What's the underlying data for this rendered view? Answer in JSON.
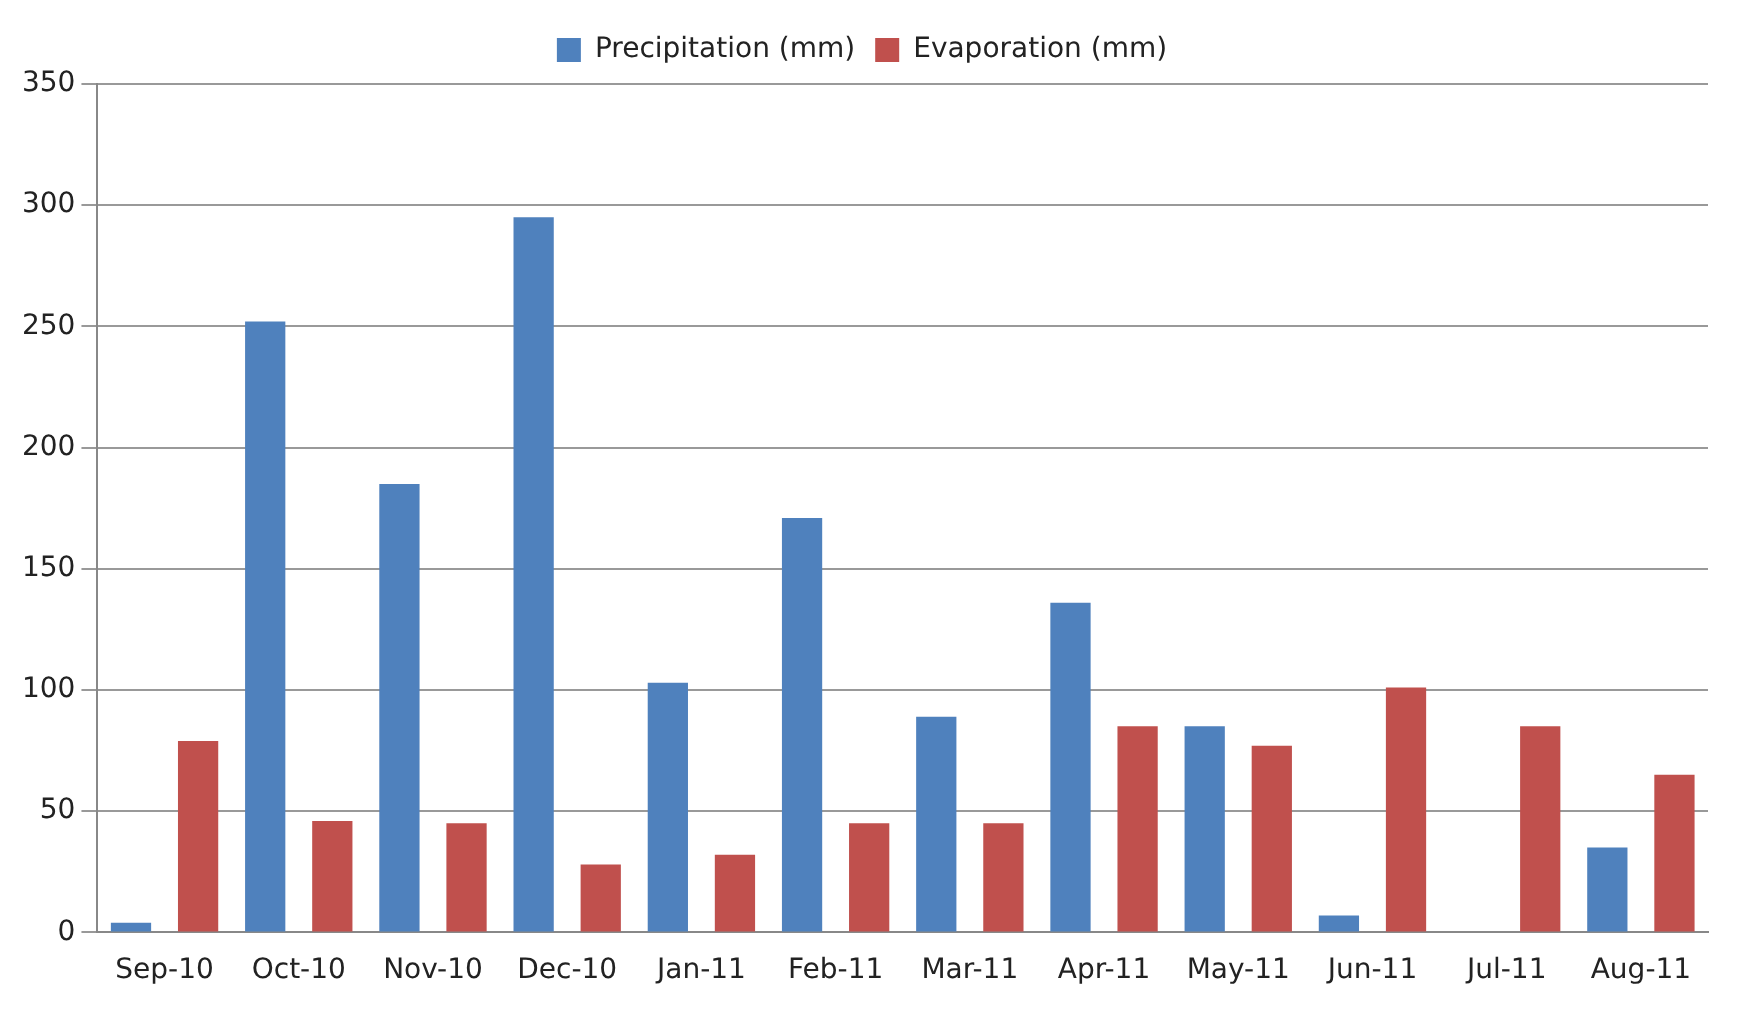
{
  "chart_data": {
    "type": "bar",
    "categories": [
      "Sep-10",
      "Oct-10",
      "Nov-10",
      "Dec-10",
      "Jan-11",
      "Feb-11",
      "Mar-11",
      "Apr-11",
      "May-11",
      "Jun-11",
      "Jul-11",
      "Aug-11"
    ],
    "series": [
      {
        "name": "Precipitation (mm)",
        "color": "#4f81bd",
        "values": [
          4,
          252,
          185,
          295,
          103,
          171,
          89,
          136,
          85,
          7,
          0,
          35
        ]
      },
      {
        "name": "Evaporation (mm)",
        "color": "#c0504d",
        "values": [
          79,
          46,
          45,
          28,
          32,
          45,
          45,
          85,
          77,
          101,
          85,
          65
        ]
      }
    ],
    "ylim": [
      0,
      350
    ],
    "yticks": [
      0,
      50,
      100,
      150,
      200,
      250,
      300,
      350
    ],
    "grid": "y",
    "legend": "top"
  }
}
